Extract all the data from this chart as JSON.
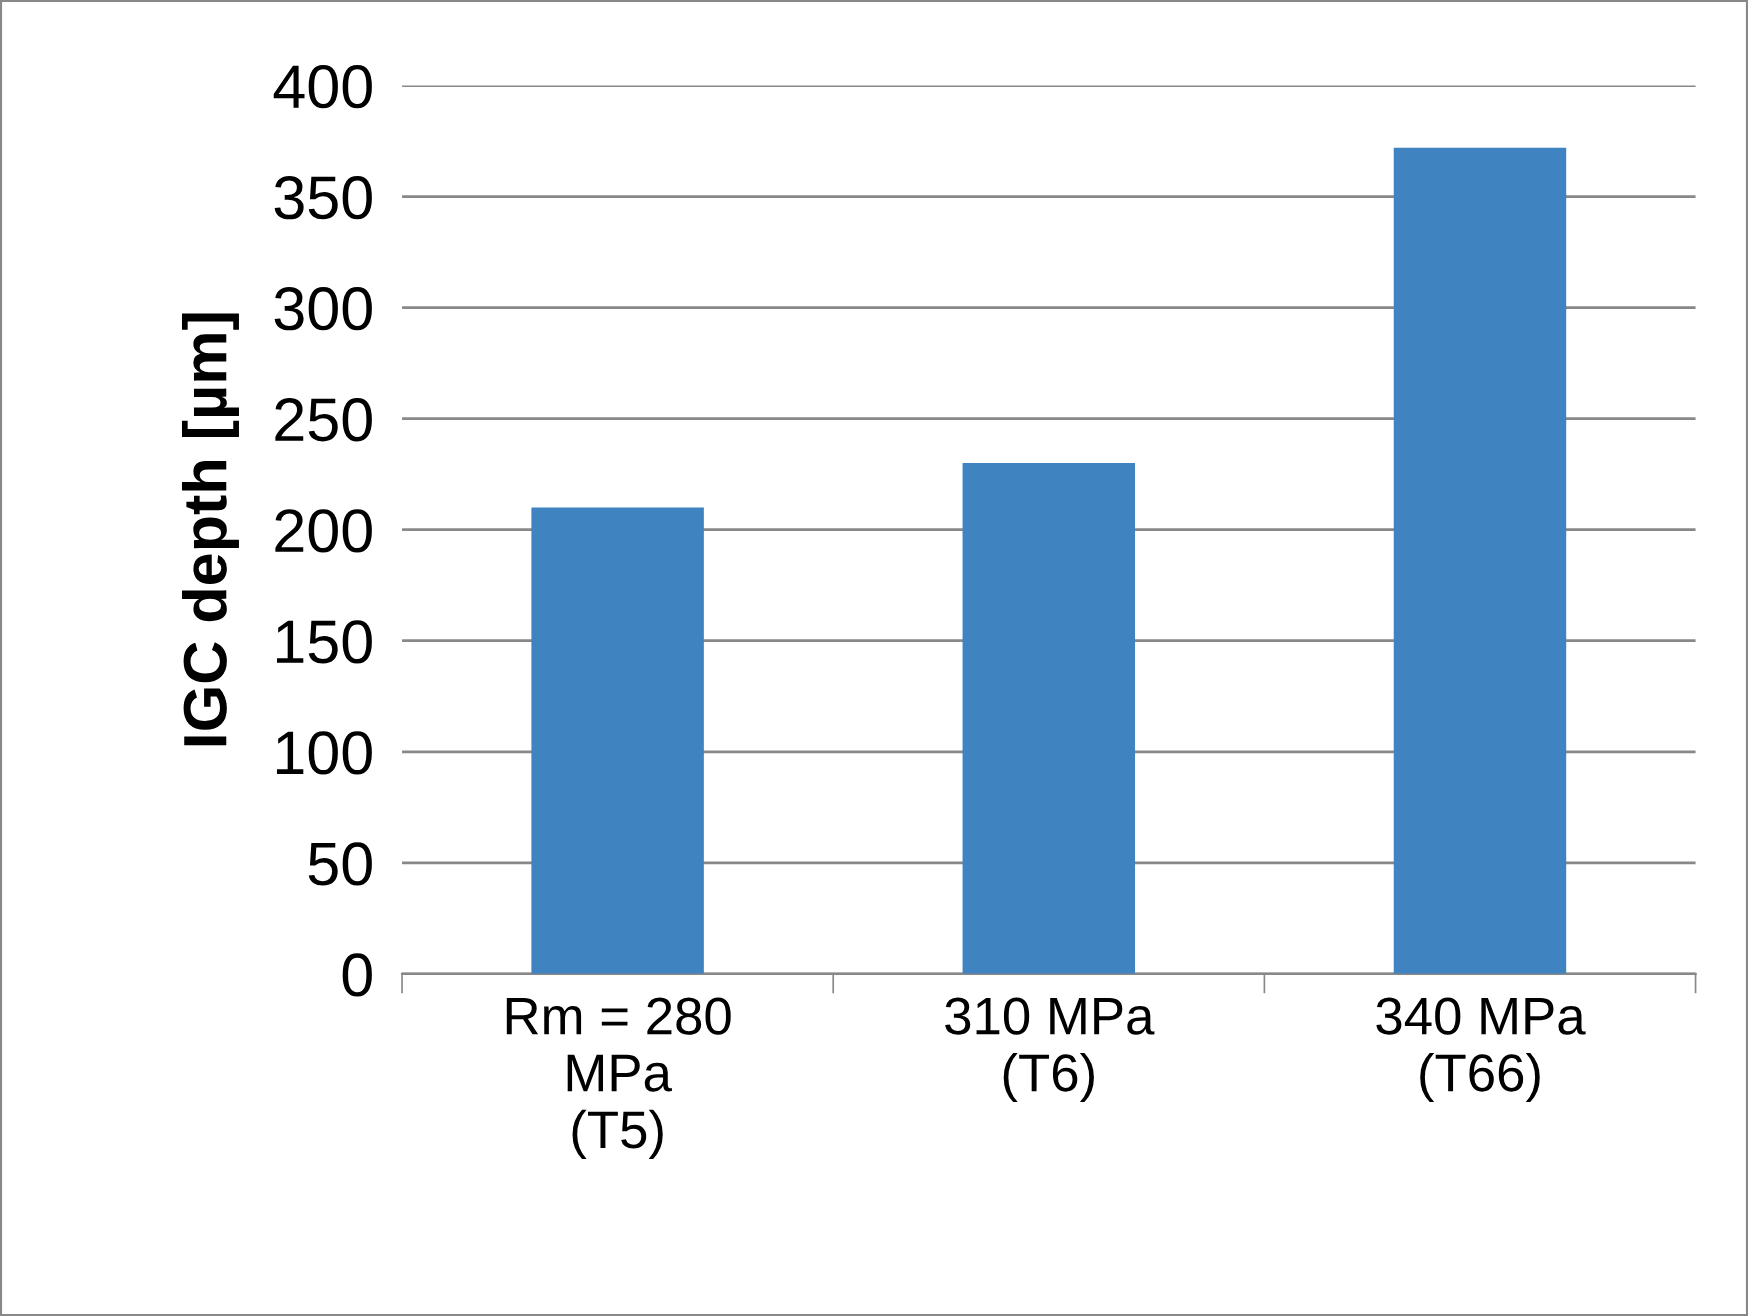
{
  "chart_data": {
    "type": "bar",
    "ylabel": "IGC depth [µm]",
    "categories": [
      "Rm = 280\nMPa\n(T5)",
      "310 MPa\n(T6)",
      "340 MPa\n(T66)"
    ],
    "values": [
      210,
      230,
      372
    ],
    "color": "#3f83c0",
    "ylim": [
      0,
      400
    ],
    "yticks": [
      0,
      50,
      100,
      150,
      200,
      250,
      300,
      350,
      400
    ],
    "grid": "y",
    "legend": false
  }
}
